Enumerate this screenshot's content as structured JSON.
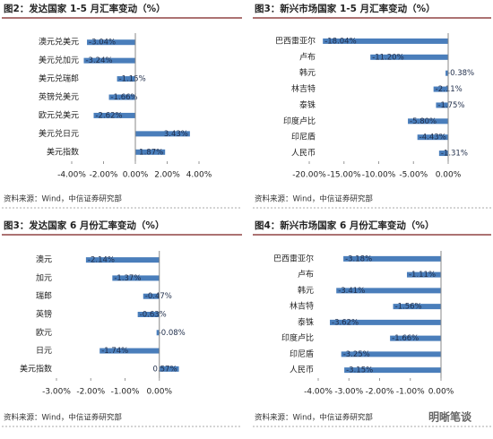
{
  "chart_data": [
    {
      "type": "bar",
      "orientation": "horizontal",
      "title": "图2：发达国家 1-5 月汇率变动（%）",
      "source": "资料来源：Wind，中信证券研究部",
      "categories": [
        "澳元兑美元",
        "美元兑加元",
        "美元兑瑞郎",
        "英镑兑美元",
        "欧元兑美元",
        "美元兑日元",
        "美元指数"
      ],
      "values": [
        -3.04,
        -3.24,
        -1.15,
        -1.66,
        -2.62,
        3.43,
        1.87
      ],
      "value_labels": [
        "-3.04%",
        "-3.24%",
        "-1.15%",
        "-1.66%",
        "-2.62%",
        "3.43%",
        "1.87%"
      ],
      "color": "#4a7ebb",
      "xlim": [
        -4,
        4
      ],
      "xticks": [
        {
          "value": -4,
          "label": "-4.00%"
        },
        {
          "value": -2,
          "label": "-2.00%"
        },
        {
          "value": 0,
          "label": "0.00%"
        },
        {
          "value": 2,
          "label": "2.00%"
        },
        {
          "value": 4,
          "label": "4.00%"
        }
      ]
    },
    {
      "type": "bar",
      "orientation": "horizontal",
      "title": "图3：新兴市场国家 1-5 月汇率变动（%）",
      "source": "资料来源：Wind，中信证券研究部",
      "categories": [
        "巴西雷亚尔",
        "卢布",
        "韩元",
        "林吉特",
        "泰铢",
        "印度卢比",
        "印尼盾",
        "人民币"
      ],
      "values": [
        -18.04,
        -11.2,
        -0.38,
        -2.11,
        -1.75,
        -5.8,
        -4.43,
        -1.31
      ],
      "value_labels": [
        "-18.04%",
        "-11.20%",
        "-0.38%",
        "-2.11%",
        "-1.75%",
        "-5.80%",
        "-4.43%",
        "-1.31%"
      ],
      "color": "#4a7ebb",
      "xlim": [
        -20,
        0
      ],
      "xticks": [
        {
          "value": -20,
          "label": "-20.00%"
        },
        {
          "value": -15,
          "label": "-15.00%"
        },
        {
          "value": -10,
          "label": "-10.00%"
        },
        {
          "value": -5,
          "label": "-5.00%"
        },
        {
          "value": 0,
          "label": "0.00%"
        }
      ]
    },
    {
      "type": "bar",
      "orientation": "horizontal",
      "title": "图3：发达国家 6 月份汇率变动（%）",
      "source": "资料来源：Wind，中信证券研究部",
      "categories": [
        "澳元",
        "加元",
        "瑞郎",
        "英镑",
        "欧元",
        "日元",
        "美元指数"
      ],
      "values": [
        -2.14,
        -1.37,
        -0.47,
        -0.63,
        -0.08,
        -1.74,
        0.57
      ],
      "value_labels": [
        "-2.14%",
        "-1.37%",
        "-0.47%",
        "-0.63%",
        "-0.08%",
        "-1.74%",
        "0.57%"
      ],
      "color": "#4a7ebb",
      "xlim": [
        -3,
        1
      ],
      "xticks": [
        {
          "value": -3,
          "label": "-3.00%"
        },
        {
          "value": -2,
          "label": "-2.00%"
        },
        {
          "value": -1,
          "label": "-1.00%"
        },
        {
          "value": 0,
          "label": "0.00%"
        }
      ]
    },
    {
      "type": "bar",
      "orientation": "horizontal",
      "title": "图4：新兴市场国家 6 月份汇率变动（%）",
      "source": "资料来源：Wind，中信证券研究部",
      "categories": [
        "巴西雷亚尔",
        "卢布",
        "韩元",
        "林吉特",
        "泰铢",
        "印度卢比",
        "印尼盾",
        "人民币"
      ],
      "values": [
        -3.18,
        -1.11,
        -3.41,
        -1.56,
        -3.62,
        -1.66,
        -3.25,
        -3.15
      ],
      "value_labels": [
        "-3.18%",
        "-1.11%",
        "-3.41%",
        "-1.56%",
        "-3.62%",
        "-1.66%",
        "-3.25%",
        "-3.15%"
      ],
      "color": "#4a7ebb",
      "xlim": [
        -4,
        0
      ],
      "xticks": [
        {
          "value": -4,
          "label": "-4.00%"
        },
        {
          "value": -3,
          "label": "-3.00%"
        },
        {
          "value": -2,
          "label": "-2.00%"
        },
        {
          "value": -1,
          "label": "-1.00%"
        },
        {
          "value": 0,
          "label": "0.00%"
        }
      ]
    }
  ],
  "watermark": "明晰笔谈"
}
